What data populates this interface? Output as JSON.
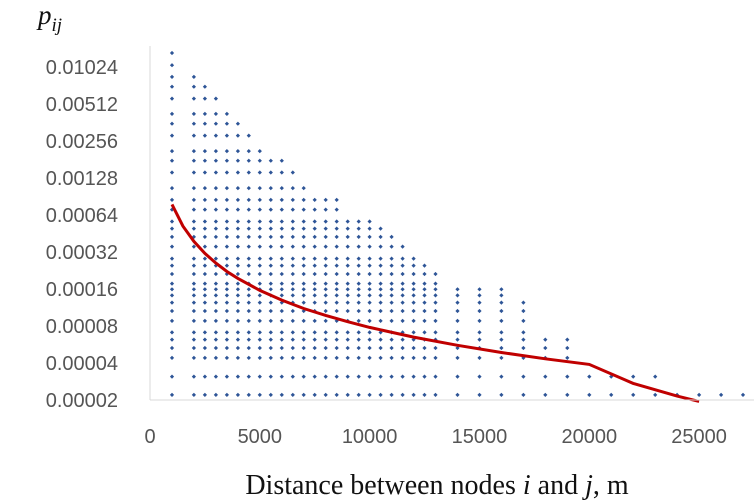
{
  "chart_data": {
    "type": "scatter",
    "title": "",
    "ylabel": {
      "base": "p",
      "subscript": "ij"
    },
    "xlabel": {
      "parts": [
        "Distance between nodes ",
        "i",
        " and ",
        "j",
        ", m"
      ]
    },
    "xlim": [
      0,
      27500
    ],
    "ylim": [
      2e-05,
      0.01024
    ],
    "yscale": "log2",
    "grid": false,
    "legend": "none",
    "x_ticks": [
      0,
      5000,
      10000,
      15000,
      20000,
      25000
    ],
    "x_tick_labels": [
      "0",
      "5000",
      "10000",
      "15000",
      "20000",
      "25000"
    ],
    "y_ticks": [
      2e-05,
      4e-05,
      8e-05,
      0.00016,
      0.00032,
      0.00064,
      0.00128,
      0.00256,
      0.00512,
      0.01024
    ],
    "y_tick_labels": [
      "0.00002",
      "0.00004",
      "0.00008",
      "0.00016",
      "0.00032",
      "0.00064",
      "0.00128",
      "0.00256",
      "0.00512",
      "0.01024"
    ],
    "series": [
      {
        "type": "scatter",
        "color": "#2e5597",
        "marker": "diamond",
        "column_x": [
          1000,
          2000,
          2500,
          3000,
          3500,
          4000,
          4500,
          5000,
          5500,
          6000,
          6500,
          7000,
          7500,
          8000,
          8500,
          9000,
          9500,
          10000,
          10500,
          11000,
          11500,
          12000,
          12500,
          13000,
          14000,
          15000,
          16000,
          17000,
          18000,
          19000,
          20000,
          21000,
          22000,
          23000,
          24000,
          25000,
          26000,
          27000
        ],
        "column_top": [
          0.0133,
          0.0089,
          0.0077,
          0.0058,
          0.0046,
          0.0037,
          0.0031,
          0.0025,
          0.0021,
          0.0018,
          0.0015,
          0.0012,
          0.00105,
          0.00095,
          0.00085,
          0.0007,
          0.00062,
          0.00058,
          0.00052,
          0.00045,
          0.00038,
          0.0003,
          0.00026,
          0.00024,
          0.00016,
          0.00016,
          0.00016,
          0.00014,
          7e-05,
          7e-05,
          4e-05,
          4e-05,
          4e-05,
          4e-05,
          2.2e-05,
          2.2e-05,
          2.2e-05,
          2.2e-05
        ],
        "discrete_levels": [
          2.2e-05,
          3.1e-05,
          4.4e-05,
          5.3e-05,
          6.2e-05,
          7.1e-05,
          8.8e-05,
          0.000106,
          0.000124,
          0.000142,
          0.000159,
          0.000177,
          0.000212,
          0.000248,
          0.000283,
          0.000354,
          0.000425,
          0.000496,
          0.000567,
          0.000708,
          0.00085,
          0.00106,
          0.00142,
          0.00177,
          0.00212,
          0.00283,
          0.00354,
          0.00425,
          0.00566,
          0.00708,
          0.0085,
          0.0106,
          0.0133
        ]
      },
      {
        "type": "line",
        "color": "#c00000",
        "x": [
          1000,
          1500,
          2000,
          2500,
          3000,
          3500,
          4000,
          5000,
          6000,
          7000,
          8000,
          9000,
          10000,
          12000,
          14000,
          16000,
          18000,
          20000,
          22000,
          24000,
          25000
        ],
        "y": [
          0.00078,
          0.00052,
          0.00039,
          0.000312,
          0.00026,
          0.000222,
          0.000195,
          0.000156,
          0.00013,
          0.000111,
          9.75e-05,
          8.67e-05,
          7.8e-05,
          6.5e-05,
          5.57e-05,
          4.87e-05,
          4.33e-05,
          3.9e-05,
          2.73e-05,
          2.15e-05,
          1.95e-05
        ]
      }
    ]
  }
}
